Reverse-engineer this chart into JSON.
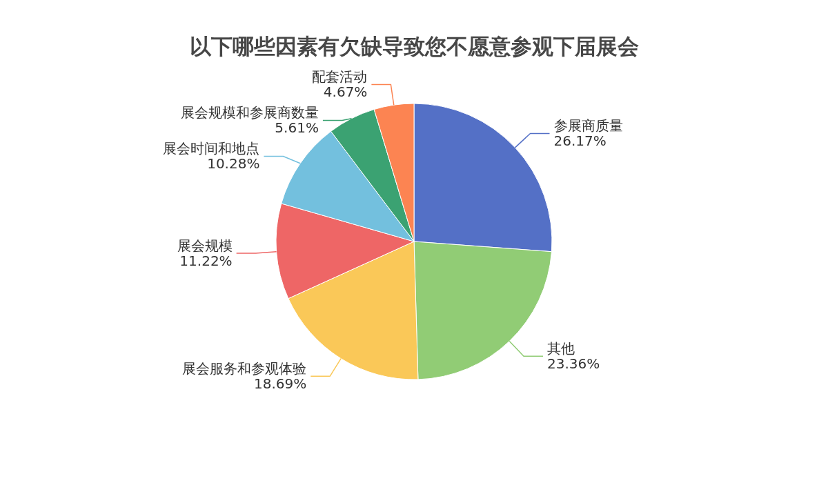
{
  "chart_data": {
    "type": "pie",
    "title": "以下哪些因素有欠缺导致您不愿意参观下届展会",
    "categories": [
      "参展商质量",
      "其他",
      "展会服务和参观体验",
      "展会规模",
      "展会时间和地点",
      "展会规模和参展商数量",
      "配套活动"
    ],
    "values": [
      26.17,
      23.36,
      18.69,
      11.22,
      10.28,
      5.61,
      4.67
    ],
    "value_labels": [
      "26.17%",
      "23.36%",
      "18.69%",
      "11.22%",
      "10.28%",
      "5.61%",
      "4.67%"
    ],
    "colors": [
      "#5470c6",
      "#91cc75",
      "#fac858",
      "#ee6666",
      "#73c0de",
      "#3ba272",
      "#fc8452"
    ]
  }
}
